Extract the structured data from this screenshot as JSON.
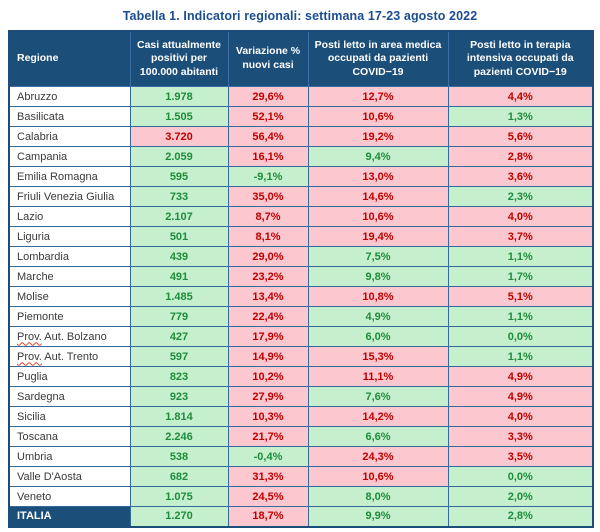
{
  "title": "Tabella 1. Indicatori regionali: settimana 17-23 agosto 2022",
  "columns": [
    "Regione",
    "Casi attualmente positivi per 100.000 abitanti",
    "Variazione % nuovi casi",
    "Posti letto in area medica occupati da pazienti COVID−19",
    "Posti letto in terapia intensiva occupati da pazienti COVID−19"
  ],
  "colors": {
    "title_text": "#1b4e8f",
    "header_bg": "#1b4e79",
    "header_sep": "#3a6ea5",
    "grid_border": "#35699a",
    "region_text": "#3a3a3a",
    "good_bg": "#c6efce",
    "good_text": "#1e8c3a",
    "bad_bg": "#fcc7ce",
    "bad_text": "#c00000"
  },
  "rows": [
    {
      "region": "Abruzzo",
      "values": [
        {
          "v": "1.978",
          "s": "good"
        },
        {
          "v": "29,6%",
          "s": "bad"
        },
        {
          "v": "12,7%",
          "s": "bad"
        },
        {
          "v": "4,4%",
          "s": "bad"
        }
      ]
    },
    {
      "region": "Basilicata",
      "values": [
        {
          "v": "1.505",
          "s": "good"
        },
        {
          "v": "52,1%",
          "s": "bad"
        },
        {
          "v": "10,6%",
          "s": "bad"
        },
        {
          "v": "1,3%",
          "s": "good"
        }
      ]
    },
    {
      "region": "Calabria",
      "values": [
        {
          "v": "3.720",
          "s": "bad"
        },
        {
          "v": "56,4%",
          "s": "bad"
        },
        {
          "v": "19,2%",
          "s": "bad"
        },
        {
          "v": "5,6%",
          "s": "bad"
        }
      ]
    },
    {
      "region": "Campania",
      "values": [
        {
          "v": "2.059",
          "s": "good"
        },
        {
          "v": "16,1%",
          "s": "bad"
        },
        {
          "v": "9,4%",
          "s": "good"
        },
        {
          "v": "2,8%",
          "s": "bad"
        }
      ]
    },
    {
      "region": "Emilia Romagna",
      "values": [
        {
          "v": "595",
          "s": "good"
        },
        {
          "v": "-9,1%",
          "s": "good"
        },
        {
          "v": "13,0%",
          "s": "bad"
        },
        {
          "v": "3,6%",
          "s": "bad"
        }
      ]
    },
    {
      "region": "Friuli Venezia Giulia",
      "values": [
        {
          "v": "733",
          "s": "good"
        },
        {
          "v": "35,0%",
          "s": "bad"
        },
        {
          "v": "14,6%",
          "s": "bad"
        },
        {
          "v": "2,3%",
          "s": "good"
        }
      ]
    },
    {
      "region": "Lazio",
      "values": [
        {
          "v": "2.107",
          "s": "good"
        },
        {
          "v": "8,7%",
          "s": "bad"
        },
        {
          "v": "10,6%",
          "s": "bad"
        },
        {
          "v": "4,0%",
          "s": "bad"
        }
      ]
    },
    {
      "region": "Liguria",
      "values": [
        {
          "v": "501",
          "s": "good"
        },
        {
          "v": "8,1%",
          "s": "bad"
        },
        {
          "v": "19,4%",
          "s": "bad"
        },
        {
          "v": "3,7%",
          "s": "bad"
        }
      ]
    },
    {
      "region": "Lombardia",
      "values": [
        {
          "v": "439",
          "s": "good"
        },
        {
          "v": "29,0%",
          "s": "bad"
        },
        {
          "v": "7,5%",
          "s": "good"
        },
        {
          "v": "1,1%",
          "s": "good"
        }
      ]
    },
    {
      "region": "Marche",
      "values": [
        {
          "v": "491",
          "s": "good"
        },
        {
          "v": "23,2%",
          "s": "bad"
        },
        {
          "v": "9,8%",
          "s": "good"
        },
        {
          "v": "1,7%",
          "s": "good"
        }
      ]
    },
    {
      "region": "Molise",
      "values": [
        {
          "v": "1.485",
          "s": "good"
        },
        {
          "v": "13,4%",
          "s": "bad"
        },
        {
          "v": "10,8%",
          "s": "bad"
        },
        {
          "v": "5,1%",
          "s": "bad"
        }
      ]
    },
    {
      "region": "Piemonte",
      "values": [
        {
          "v": "779",
          "s": "good"
        },
        {
          "v": "22,4%",
          "s": "bad"
        },
        {
          "v": "4,9%",
          "s": "good"
        },
        {
          "v": "1,1%",
          "s": "good"
        }
      ]
    },
    {
      "region": "Prov. Aut. Bolzano",
      "wavy": true,
      "values": [
        {
          "v": "427",
          "s": "good"
        },
        {
          "v": "17,9%",
          "s": "bad"
        },
        {
          "v": "6,0%",
          "s": "good"
        },
        {
          "v": "0,0%",
          "s": "good"
        }
      ]
    },
    {
      "region": "Prov. Aut. Trento",
      "wavy": true,
      "values": [
        {
          "v": "597",
          "s": "good"
        },
        {
          "v": "14,9%",
          "s": "bad"
        },
        {
          "v": "15,3%",
          "s": "bad"
        },
        {
          "v": "1,1%",
          "s": "good"
        }
      ]
    },
    {
      "region": "Puglia",
      "values": [
        {
          "v": "823",
          "s": "good"
        },
        {
          "v": "10,2%",
          "s": "bad"
        },
        {
          "v": "11,1%",
          "s": "bad"
        },
        {
          "v": "4,9%",
          "s": "bad"
        }
      ]
    },
    {
      "region": "Sardegna",
      "values": [
        {
          "v": "923",
          "s": "good"
        },
        {
          "v": "27,9%",
          "s": "bad"
        },
        {
          "v": "7,6%",
          "s": "good"
        },
        {
          "v": "4,9%",
          "s": "bad"
        }
      ]
    },
    {
      "region": "Sicilia",
      "values": [
        {
          "v": "1.814",
          "s": "good"
        },
        {
          "v": "10,3%",
          "s": "bad"
        },
        {
          "v": "14,2%",
          "s": "bad"
        },
        {
          "v": "4,0%",
          "s": "bad"
        }
      ]
    },
    {
      "region": "Toscana",
      "values": [
        {
          "v": "2.246",
          "s": "good"
        },
        {
          "v": "21,7%",
          "s": "bad"
        },
        {
          "v": "6,6%",
          "s": "good"
        },
        {
          "v": "3,3%",
          "s": "bad"
        }
      ]
    },
    {
      "region": "Umbria",
      "values": [
        {
          "v": "538",
          "s": "good"
        },
        {
          "v": "-0,4%",
          "s": "good"
        },
        {
          "v": "24,3%",
          "s": "bad"
        },
        {
          "v": "3,5%",
          "s": "bad"
        }
      ]
    },
    {
      "region": "Valle D'Aosta",
      "values": [
        {
          "v": "682",
          "s": "good"
        },
        {
          "v": "31,3%",
          "s": "bad"
        },
        {
          "v": "10,6%",
          "s": "bad"
        },
        {
          "v": "0,0%",
          "s": "good"
        }
      ]
    },
    {
      "region": "Veneto",
      "values": [
        {
          "v": "1.075",
          "s": "good"
        },
        {
          "v": "24,5%",
          "s": "bad"
        },
        {
          "v": "8,0%",
          "s": "good"
        },
        {
          "v": "2,0%",
          "s": "good"
        }
      ]
    },
    {
      "region": "ITALIA",
      "total": true,
      "values": [
        {
          "v": "1.270",
          "s": "good"
        },
        {
          "v": "18,7%",
          "s": "bad"
        },
        {
          "v": "9,9%",
          "s": "good"
        },
        {
          "v": "2,8%",
          "s": "good"
        }
      ]
    }
  ]
}
